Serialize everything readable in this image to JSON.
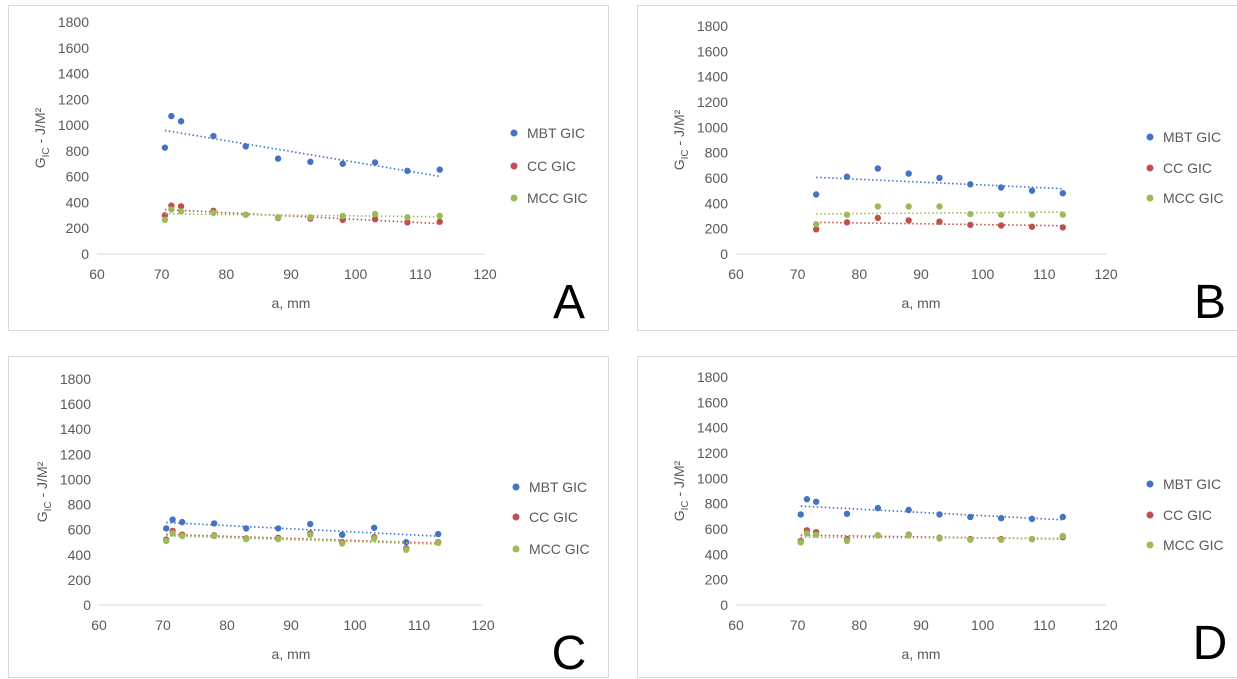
{
  "colors": {
    "MBT GIC": "#4472c4",
    "CC GIC": "#c0504d",
    "MCC GIC": "#9bbb59"
  },
  "chart_data": [
    {
      "panel": "A",
      "type": "scatter",
      "xlabel": "a, mm",
      "ylabel_main": "G",
      "ylabel_sub": "IC",
      "ylabel_rest": " - J/M²",
      "xlim": [
        60,
        120
      ],
      "ylim": [
        0,
        1800
      ],
      "xticks": [
        "60",
        "70",
        "80",
        "90",
        "100",
        "110",
        "120"
      ],
      "yticks": [
        "0",
        "200",
        "400",
        "600",
        "800",
        "1000",
        "1200",
        "1400",
        "1600",
        "1800"
      ],
      "legend_position": "right",
      "trendlines": "linear dotted",
      "series": [
        {
          "name": "MBT GIC",
          "x": [
            70.5,
            71.5,
            73,
            78,
            83,
            88,
            93,
            98,
            103,
            108,
            113
          ],
          "y": [
            825,
            1070,
            1030,
            915,
            835,
            740,
            715,
            700,
            710,
            645,
            655
          ]
        },
        {
          "name": "CC GIC",
          "x": [
            70.5,
            71.5,
            73,
            78,
            83,
            88,
            93,
            98,
            103,
            108,
            113
          ],
          "y": [
            300,
            375,
            370,
            335,
            305,
            280,
            275,
            265,
            270,
            245,
            250
          ]
        },
        {
          "name": "MCC GIC",
          "x": [
            70.5,
            71.5,
            73,
            78,
            83,
            88,
            93,
            98,
            103,
            108,
            113
          ],
          "y": [
            265,
            345,
            330,
            320,
            305,
            285,
            285,
            295,
            310,
            285,
            295
          ]
        }
      ]
    },
    {
      "panel": "B",
      "type": "scatter",
      "xlabel": "a, mm",
      "ylabel_main": "G",
      "ylabel_sub": "IC",
      "ylabel_rest": " - J/M²",
      "xlim": [
        60,
        120
      ],
      "ylim": [
        0,
        1800
      ],
      "xticks": [
        "60",
        "70",
        "80",
        "90",
        "100",
        "110",
        "120"
      ],
      "yticks": [
        "0",
        "200",
        "400",
        "600",
        "800",
        "1000",
        "1200",
        "1400",
        "1600",
        "1800"
      ],
      "legend_position": "right",
      "trendlines": "linear dotted",
      "series": [
        {
          "name": "MBT GIC",
          "x": [
            73,
            78,
            83,
            88,
            93,
            98,
            103,
            108,
            113
          ],
          "y": [
            470,
            610,
            675,
            635,
            600,
            550,
            525,
            500,
            480
          ]
        },
        {
          "name": "CC GIC",
          "x": [
            73,
            78,
            83,
            88,
            93,
            98,
            103,
            108,
            113
          ],
          "y": [
            195,
            250,
            285,
            265,
            255,
            230,
            225,
            215,
            210
          ]
        },
        {
          "name": "MCC GIC",
          "x": [
            73,
            78,
            83,
            88,
            93,
            98,
            103,
            108,
            113
          ],
          "y": [
            235,
            310,
            375,
            375,
            375,
            315,
            310,
            310,
            310
          ]
        }
      ]
    },
    {
      "panel": "C",
      "type": "scatter",
      "xlabel": "a, mm",
      "ylabel_main": "G",
      "ylabel_sub": "IC",
      "ylabel_rest": " - J/M²",
      "xlim": [
        60,
        120
      ],
      "ylim": [
        0,
        1800
      ],
      "xticks": [
        "60",
        "70",
        "80",
        "90",
        "100",
        "110",
        "120"
      ],
      "yticks": [
        "0",
        "200",
        "400",
        "600",
        "800",
        "1000",
        "1200",
        "1400",
        "1600",
        "1800"
      ],
      "legend_position": "right",
      "trendlines": "linear dotted",
      "series": [
        {
          "name": "MBT GIC",
          "x": [
            70.5,
            71.5,
            73,
            78,
            83,
            88,
            93,
            98,
            103,
            108,
            113
          ],
          "y": [
            610,
            680,
            660,
            650,
            610,
            610,
            645,
            560,
            615,
            500,
            565
          ]
        },
        {
          "name": "CC GIC",
          "x": [
            70.5,
            71.5,
            73,
            78,
            83,
            88,
            93,
            98,
            103,
            108,
            113
          ],
          "y": [
            520,
            590,
            560,
            555,
            530,
            535,
            570,
            500,
            540,
            450,
            500
          ]
        },
        {
          "name": "MCC GIC",
          "x": [
            70.5,
            71.5,
            73,
            78,
            83,
            88,
            93,
            98,
            103,
            108,
            113
          ],
          "y": [
            510,
            570,
            550,
            550,
            525,
            525,
            560,
            490,
            530,
            440,
            495
          ]
        }
      ]
    },
    {
      "panel": "D",
      "type": "scatter",
      "xlabel": "a, mm",
      "ylabel_main": "G",
      "ylabel_sub": "IC",
      "ylabel_rest": " - J/M²",
      "xlim": [
        60,
        120
      ],
      "ylim": [
        0,
        1800
      ],
      "xticks": [
        "60",
        "70",
        "80",
        "90",
        "100",
        "110",
        "120"
      ],
      "yticks": [
        "0",
        "200",
        "400",
        "600",
        "800",
        "1000",
        "1200",
        "1400",
        "1600",
        "1800"
      ],
      "legend_position": "right",
      "trendlines": "linear dotted",
      "series": [
        {
          "name": "MBT GIC",
          "x": [
            70.5,
            71.5,
            73,
            78,
            83,
            88,
            93,
            98,
            103,
            108,
            113
          ],
          "y": [
            715,
            835,
            815,
            720,
            765,
            750,
            715,
            695,
            685,
            680,
            695
          ]
        },
        {
          "name": "CC GIC",
          "x": [
            70.5,
            71.5,
            73,
            78,
            83,
            88,
            93,
            98,
            103,
            108,
            113
          ],
          "y": [
            505,
            590,
            575,
            520,
            550,
            555,
            530,
            520,
            520,
            520,
            535
          ]
        },
        {
          "name": "MCC GIC",
          "x": [
            70.5,
            71.5,
            73,
            78,
            83,
            88,
            93,
            98,
            103,
            108,
            113
          ],
          "y": [
            495,
            565,
            555,
            505,
            550,
            550,
            525,
            515,
            515,
            520,
            545
          ]
        }
      ]
    }
  ]
}
